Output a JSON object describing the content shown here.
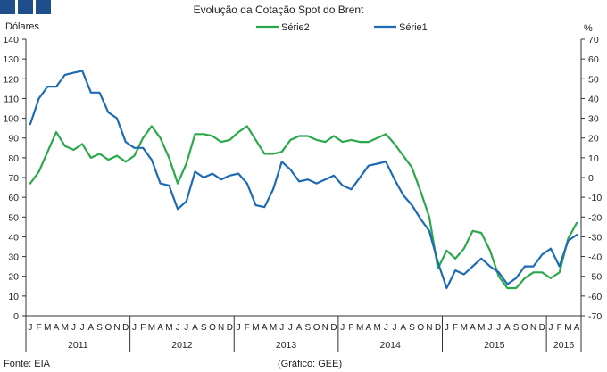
{
  "chart_data": {
    "type": "line",
    "title": "Evolução da Cotação Spot do Brent",
    "left_axis": {
      "label": "Dólares",
      "min": 0,
      "max": 140,
      "step": 10
    },
    "right_axis": {
      "label": "%",
      "min": -70,
      "max": 70,
      "step": 10
    },
    "legend_position": "top-center",
    "months": [
      "J",
      "F",
      "M",
      "A",
      "M",
      "J",
      "J",
      "A",
      "S",
      "O",
      "N",
      "D",
      "J",
      "F",
      "M",
      "A",
      "M",
      "J",
      "J",
      "A",
      "S",
      "O",
      "N",
      "D",
      "J",
      "F",
      "M",
      "A",
      "M",
      "J",
      "J",
      "A",
      "S",
      "O",
      "N",
      "D",
      "J",
      "F",
      "M",
      "A",
      "M",
      "J",
      "J",
      "A",
      "S",
      "O",
      "N",
      "D",
      "J",
      "F",
      "M",
      "A",
      "M",
      "J",
      "J",
      "A",
      "S",
      "O",
      "N",
      "D",
      "J",
      "F",
      "M",
      "A"
    ],
    "years": [
      {
        "label": "2011",
        "months": 12
      },
      {
        "label": "2012",
        "months": 12
      },
      {
        "label": "2013",
        "months": 12
      },
      {
        "label": "2014",
        "months": 12
      },
      {
        "label": "2015",
        "months": 12
      },
      {
        "label": "2016",
        "months": 4
      }
    ],
    "series": [
      {
        "name": "Série2",
        "axis": "right",
        "color": "#2aa84a",
        "values": [
          -3,
          3,
          13,
          23,
          16,
          14,
          17,
          10,
          12,
          9,
          11,
          8,
          11,
          20,
          26,
          20,
          10,
          -3,
          7,
          22,
          22,
          21,
          18,
          19,
          23,
          26,
          19,
          12,
          12,
          13,
          19,
          21,
          21,
          19,
          18,
          21,
          18,
          19,
          18,
          18,
          20,
          22,
          17,
          11,
          5,
          -7,
          -20,
          -46,
          -37,
          -41,
          -36,
          -27,
          -28,
          -37,
          -50,
          -56,
          -56,
          -51,
          -48,
          -48,
          -51,
          -48,
          -31,
          -23
        ]
      },
      {
        "name": "Série1",
        "axis": "left",
        "color": "#1f6bb3",
        "values": [
          97,
          110,
          116,
          116,
          122,
          123,
          124,
          113,
          113,
          103,
          100,
          88,
          85,
          85,
          79,
          67,
          66,
          54,
          58,
          73,
          70,
          72,
          69,
          71,
          72,
          67,
          56,
          55,
          64,
          78,
          74,
          68,
          69,
          67,
          69,
          71,
          66,
          64,
          70,
          76,
          77,
          78,
          69,
          61,
          56,
          49,
          43,
          27,
          14,
          23,
          21,
          25,
          29,
          25,
          22,
          16,
          19,
          25,
          25,
          31,
          34,
          25,
          38,
          41
        ]
      }
    ]
  },
  "footer": {
    "source": "Fonte: EIA",
    "credit": "(Gráfico: GEE)"
  }
}
